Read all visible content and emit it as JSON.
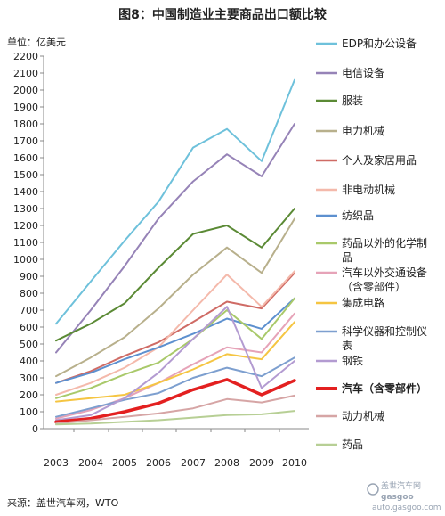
{
  "chart_data": {
    "type": "line",
    "title": "图8：中国制造业主要商品出口额比较",
    "unit_label": "单位：亿美元",
    "x": [
      "2003",
      "2004",
      "2005",
      "2006",
      "2007",
      "2008",
      "2009",
      "2010"
    ],
    "ylim": [
      0,
      2200
    ],
    "yticks": [
      0,
      100,
      200,
      300,
      400,
      500,
      600,
      700,
      800,
      900,
      1000,
      1100,
      1200,
      1300,
      1400,
      1500,
      1600,
      1700,
      1800,
      1900,
      2000,
      2100,
      2200
    ],
    "grid": false,
    "legend_position": "right",
    "series": [
      {
        "name": "EDP和办公设备",
        "color": "#6ec1db",
        "width": 2,
        "values": [
          620,
          870,
          1110,
          1340,
          1660,
          1770,
          1580,
          2060
        ]
      },
      {
        "name": "电信设备",
        "color": "#9683b7",
        "width": 2,
        "values": [
          450,
          700,
          960,
          1240,
          1460,
          1620,
          1490,
          1800
        ]
      },
      {
        "name": "服装",
        "color": "#5b8a35",
        "width": 2,
        "values": [
          520,
          620,
          740,
          950,
          1150,
          1200,
          1070,
          1300
        ]
      },
      {
        "name": "电力机械",
        "color": "#b8b08c",
        "width": 2,
        "values": [
          310,
          420,
          540,
          710,
          910,
          1070,
          920,
          1240
        ]
      },
      {
        "name": "个人及家居用品",
        "color": "#cf6b65",
        "width": 2,
        "values": [
          270,
          340,
          430,
          510,
          630,
          750,
          710,
          920
        ]
      },
      {
        "name": "非电动机械",
        "color": "#f4b9ab",
        "width": 2,
        "values": [
          200,
          270,
          360,
          480,
          700,
          910,
          720,
          930
        ]
      },
      {
        "name": "纺织品",
        "color": "#5d90cf",
        "width": 2,
        "values": [
          270,
          330,
          410,
          480,
          560,
          650,
          590,
          770
        ]
      },
      {
        "name": "药品以外的化学制品",
        "color": "#a9c96a",
        "width": 2,
        "values": [
          180,
          240,
          320,
          390,
          530,
          700,
          530,
          770
        ]
      },
      {
        "name": "汽车以外交通设备（含零部件）",
        "color": "#e6a3b8",
        "width": 2,
        "values": [
          60,
          110,
          180,
          270,
          380,
          480,
          450,
          680
        ]
      },
      {
        "name": "集成电路",
        "color": "#f5c542",
        "width": 2,
        "values": [
          160,
          180,
          200,
          270,
          350,
          440,
          410,
          630
        ]
      },
      {
        "name": "科学仪器和控制仪表",
        "color": "#7d9fcf",
        "width": 2,
        "values": [
          70,
          120,
          170,
          210,
          300,
          360,
          310,
          420
        ]
      },
      {
        "name": "钢铁",
        "color": "#b39bd1",
        "width": 2,
        "values": [
          50,
          80,
          180,
          330,
          530,
          720,
          240,
          400
        ]
      },
      {
        "name": "汽车（含零部件）",
        "color": "#e32020",
        "width": 3.5,
        "values": [
          40,
          60,
          100,
          150,
          230,
          290,
          200,
          285
        ]
      },
      {
        "name": "动力机械",
        "color": "#d6a5a5",
        "width": 2,
        "values": [
          30,
          50,
          70,
          90,
          120,
          175,
          155,
          195
        ]
      },
      {
        "name": "药品",
        "color": "#b7cf95",
        "width": 2,
        "values": [
          25,
          30,
          40,
          50,
          65,
          80,
          85,
          105
        ]
      }
    ]
  },
  "legend_display": [
    [
      "EDP和办公设备"
    ],
    [
      "电信设备"
    ],
    [
      "服装"
    ],
    [
      "电力机械"
    ],
    [
      "个人及家居用品"
    ],
    [
      "非电动机械"
    ],
    [
      "纺织品"
    ],
    [
      "药品以外的化学制",
      "品"
    ],
    [
      "汽车以外交通设备",
      "（含零部件）"
    ],
    [
      "集成电路"
    ],
    [
      "科学仪器和控制仪",
      "表"
    ],
    [
      "钢铁"
    ],
    [
      "汽车（含零部件）"
    ],
    [
      "动力机械"
    ],
    [
      "药品"
    ]
  ],
  "source": "来源：盖世汽车网，WTO",
  "watermark": {
    "brand": "gasgoo",
    "chinese": "盖世汽车网",
    "url": "auto.gasgoo.com"
  }
}
